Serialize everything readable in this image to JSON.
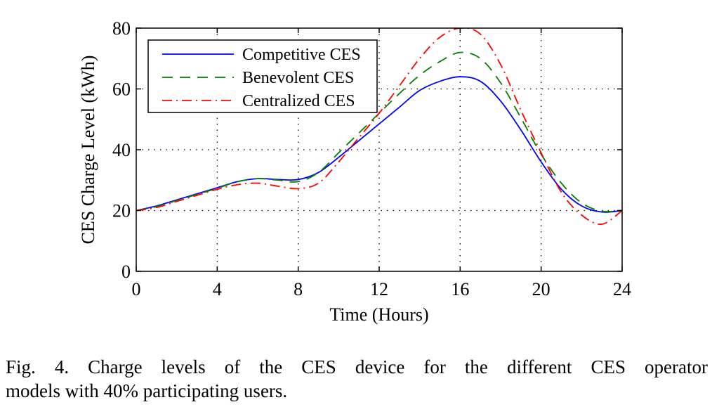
{
  "chart_data": {
    "type": "line",
    "xlabel": "Time (Hours)",
    "ylabel": "CES Charge Level (kWh)",
    "xlim": [
      0,
      24
    ],
    "ylim": [
      0,
      80
    ],
    "xticks": [
      0,
      4,
      8,
      12,
      16,
      20,
      24
    ],
    "yticks": [
      0,
      20,
      40,
      60,
      80
    ],
    "grid": "dotted",
    "legend_position": "top-left",
    "series": [
      {
        "name": "Competitive CES",
        "color": "#0000ff",
        "style": "solid",
        "x": [
          0,
          1,
          2,
          3,
          4,
          5,
          6,
          7,
          8,
          9,
          10,
          11,
          12,
          13,
          14,
          15,
          16,
          17,
          18,
          19,
          20,
          21,
          22,
          23,
          24
        ],
        "y": [
          20,
          21.5,
          23.5,
          25.5,
          27.5,
          29.5,
          30.5,
          30.2,
          30.2,
          32.5,
          37.5,
          43,
          48.5,
          54,
          59.5,
          62.5,
          64,
          62.5,
          56,
          46.5,
          36,
          27,
          21.5,
          19.5,
          20
        ]
      },
      {
        "name": "Benevolent CES",
        "color": "#008000",
        "style": "dashed",
        "x": [
          0,
          1,
          2,
          3,
          4,
          5,
          6,
          7,
          8,
          9,
          10,
          11,
          12,
          13,
          14,
          15,
          16,
          17,
          18,
          19,
          20,
          21,
          22,
          23,
          24
        ],
        "y": [
          20,
          21.3,
          23.3,
          25.3,
          27.3,
          29.5,
          30.5,
          30,
          29.5,
          32.5,
          39,
          45.5,
          52,
          58.5,
          64.5,
          69,
          72,
          70,
          62,
          50.5,
          38.5,
          29,
          22.5,
          19.8,
          20
        ]
      },
      {
        "name": "Centralized CES",
        "color": "#ff0000",
        "style": "dashdot",
        "x": [
          0,
          1,
          2,
          3,
          4,
          5,
          6,
          7,
          8,
          9,
          10,
          11,
          12,
          13,
          14,
          15,
          16,
          17,
          18,
          19,
          20,
          21,
          22,
          23,
          24
        ],
        "y": [
          20,
          21,
          23,
          25,
          27,
          28.5,
          29,
          28,
          27.2,
          29,
          36,
          44,
          52,
          61,
          70,
          77,
          80,
          78,
          68,
          53,
          39,
          26,
          18.5,
          15.5,
          20
        ]
      }
    ]
  },
  "caption": {
    "line1": "Fig. 4.    Charge levels of the CES device for the different CES operator",
    "line2": "models with 40% participating users."
  }
}
